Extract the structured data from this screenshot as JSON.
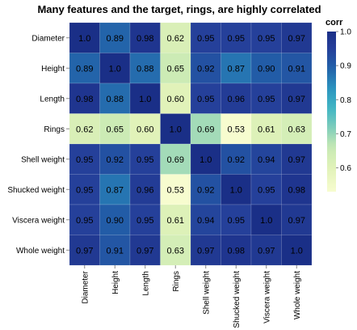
{
  "chart_data": {
    "type": "heatmap",
    "title": "Many features and the target, rings, are highly correlated",
    "x_labels": [
      "Diameter",
      "Height",
      "Length",
      "Rings",
      "Shell weight",
      "Shucked weight",
      "Viscera weight",
      "Whole weight"
    ],
    "y_labels": [
      "Diameter",
      "Height",
      "Length",
      "Rings",
      "Shell weight",
      "Shucked weight",
      "Viscera weight",
      "Whole weight"
    ],
    "values": [
      [
        1.0,
        0.89,
        0.98,
        0.62,
        0.95,
        0.95,
        0.95,
        0.97
      ],
      [
        0.89,
        1.0,
        0.88,
        0.65,
        0.92,
        0.87,
        0.9,
        0.91
      ],
      [
        0.98,
        0.88,
        1.0,
        0.6,
        0.95,
        0.96,
        0.95,
        0.97
      ],
      [
        0.62,
        0.65,
        0.6,
        1.0,
        0.69,
        0.53,
        0.61,
        0.63
      ],
      [
        0.95,
        0.92,
        0.95,
        0.69,
        1.0,
        0.92,
        0.94,
        0.97
      ],
      [
        0.95,
        0.87,
        0.96,
        0.53,
        0.92,
        1.0,
        0.95,
        0.98
      ],
      [
        0.95,
        0.9,
        0.95,
        0.61,
        0.94,
        0.95,
        1.0,
        0.97
      ],
      [
        0.97,
        0.91,
        0.97,
        0.63,
        0.97,
        0.98,
        0.97,
        1.0
      ]
    ],
    "cell_labels": [
      [
        "1.0",
        "0.89",
        "0.98",
        "0.62",
        "0.95",
        "0.95",
        "0.95",
        "0.97"
      ],
      [
        "0.89",
        "1.0",
        "0.88",
        "0.65",
        "0.92",
        "0.87",
        "0.90",
        "0.91"
      ],
      [
        "0.98",
        "0.88",
        "1.0",
        "0.60",
        "0.95",
        "0.96",
        "0.95",
        "0.97"
      ],
      [
        "0.62",
        "0.65",
        "0.60",
        "1.0",
        "0.69",
        "0.53",
        "0.61",
        "0.63"
      ],
      [
        "0.95",
        "0.92",
        "0.95",
        "0.69",
        "1.0",
        "0.92",
        "0.94",
        "0.97"
      ],
      [
        "0.95",
        "0.87",
        "0.96",
        "0.53",
        "0.92",
        "1.0",
        "0.95",
        "0.98"
      ],
      [
        "0.95",
        "0.90",
        "0.95",
        "0.61",
        "0.94",
        "0.95",
        "1.0",
        "0.97"
      ],
      [
        "0.97",
        "0.91",
        "0.97",
        "0.63",
        "0.97",
        "0.98",
        "0.97",
        "1.0"
      ]
    ],
    "colorbar": {
      "title": "corr",
      "range": [
        0.53,
        1.0
      ],
      "ticks": [
        0.6,
        0.7,
        0.8,
        0.9,
        1.0
      ],
      "tick_labels": [
        "0.6",
        "0.7",
        "0.8",
        "0.9",
        "1.0"
      ],
      "colormap": "YlGnBu"
    },
    "colors": {
      "low": "#f2f9be",
      "high": "#223596"
    }
  }
}
